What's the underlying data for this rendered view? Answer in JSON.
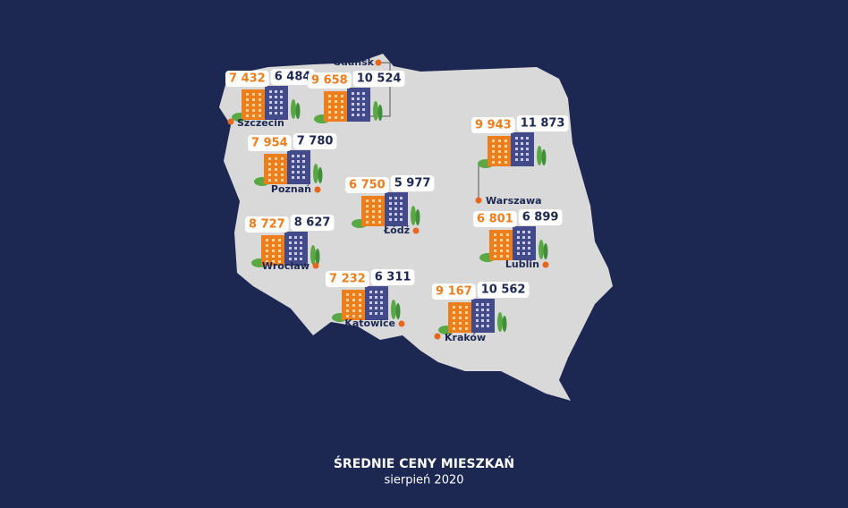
{
  "title": "ŚREDNIE CENY MIESZKAŃ",
  "subtitle": "sierpień 2020",
  "cities": [
    {
      "name": "Szczecin",
      "price_orange": "7 432",
      "price_navy": "6 484"
    },
    {
      "name": "Gdańsk",
      "price_orange": "9 658",
      "price_navy": "10 524"
    },
    {
      "name": "Poznań",
      "price_orange": "7 954",
      "price_navy": "7 780"
    },
    {
      "name": "Łódź",
      "price_orange": "6 750",
      "price_navy": "5 977"
    },
    {
      "name": "Warszawa",
      "price_orange": "9 943",
      "price_navy": "11 873"
    },
    {
      "name": "Wrocław",
      "price_orange": "8 727",
      "price_navy": "8 627"
    },
    {
      "name": "Lublin",
      "price_orange": "6 801",
      "price_navy": "6 899"
    },
    {
      "name": "Katowice",
      "price_orange": "7 232",
      "price_navy": "6 311"
    },
    {
      "name": "Kraków",
      "price_orange": "9 167",
      "price_navy": "10 562"
    }
  ]
}
